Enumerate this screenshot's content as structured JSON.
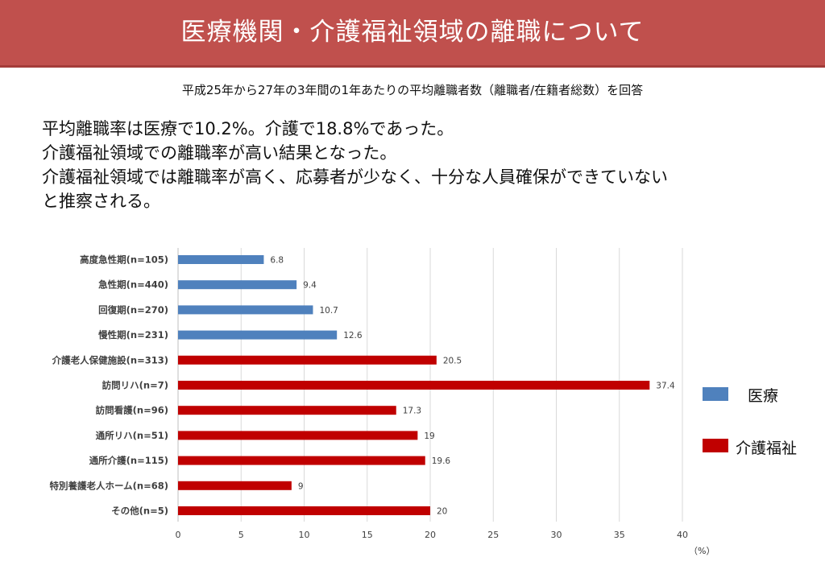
{
  "header": {
    "title": "医療機関・介護福祉領域の離職について"
  },
  "subtitle": "平成25年から27年の3年間の1年あたりの平均離職者数（離職者/在籍者総数）を回答",
  "summary": [
    "平均離職率は医療で10.2%。介護で18.8%であった。",
    "介護福祉領域での離職率が高い結果となった。",
    "介護福祉領域では離職率が高く、応募者が少なく、十分な人員確保ができていない",
    "と推察される。"
  ],
  "colors": {
    "header_bg": "#c0504d",
    "iryo": "#4f81bd",
    "kaigo": "#c00000"
  },
  "legend": [
    {
      "label": "医療",
      "color": "#4f81bd"
    },
    {
      "label": "介護福祉",
      "color": "#c00000"
    }
  ],
  "chart_data": {
    "type": "bar",
    "orientation": "horizontal",
    "unit_label": "（%）",
    "xlim": [
      0,
      40
    ],
    "x_ticks": [
      0,
      5,
      10,
      15,
      20,
      25,
      30,
      35,
      40
    ],
    "grid": true,
    "legend_position": "right",
    "bars": [
      {
        "category": "高度急性期(n=105)",
        "value": 6.8,
        "label": "6.8",
        "group": "医療"
      },
      {
        "category": "急性期(n=440)",
        "value": 9.4,
        "label": "9.4",
        "group": "医療"
      },
      {
        "category": "回復期(n=270)",
        "value": 10.7,
        "label": "10.7",
        "group": "医療"
      },
      {
        "category": "慢性期(n=231)",
        "value": 12.6,
        "label": "12.6",
        "group": "医療"
      },
      {
        "category": "介護老人保健施設(n=313)",
        "value": 20.5,
        "label": "20.5",
        "group": "介護福祉"
      },
      {
        "category": "訪問リハ(n=7)",
        "value": 37.4,
        "label": "37.4",
        "group": "介護福祉"
      },
      {
        "category": "訪問看護(n=96)",
        "value": 17.3,
        "label": "17.3",
        "group": "介護福祉"
      },
      {
        "category": "通所リハ(n=51)",
        "value": 19,
        "label": "19",
        "group": "介護福祉"
      },
      {
        "category": "通所介護(n=115)",
        "value": 19.6,
        "label": "19.6",
        "group": "介護福祉"
      },
      {
        "category": "特別養護老人ホーム(n=68)",
        "value": 9,
        "label": "9",
        "group": "介護福祉"
      },
      {
        "category": "その他(n=5)",
        "value": 20,
        "label": "20",
        "group": "介護福祉"
      }
    ]
  }
}
